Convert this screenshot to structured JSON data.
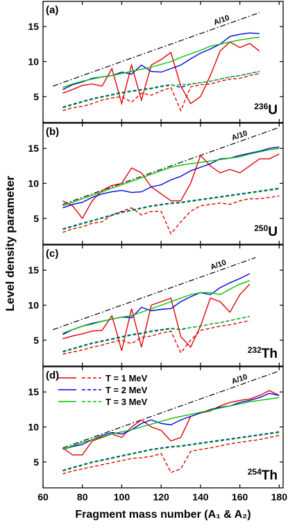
{
  "chart_data": [
    {
      "type": "line",
      "panel_label": "(a)",
      "isotope": {
        "mass": "236",
        "element": "U"
      },
      "ylabel": "Level density parameter",
      "xlim": [
        60,
        182
      ],
      "ylim": [
        1.3,
        18.6
      ],
      "xticks": [
        60,
        80,
        100,
        120,
        140,
        160,
        180
      ],
      "yticks": [
        5,
        10,
        15
      ],
      "reference": {
        "label": "A/10",
        "x": [
          65,
          170
        ],
        "values": [
          6.5,
          17
        ]
      },
      "x": [
        70,
        75,
        80,
        85,
        90,
        95,
        100,
        105,
        110,
        115,
        120,
        125,
        130,
        135,
        140,
        145,
        150,
        155,
        160,
        165,
        170
      ],
      "series": [
        {
          "color": "#e00000",
          "dash": false,
          "values": [
            5.5,
            6.0,
            6.6,
            6.8,
            6.5,
            9.0,
            4.0,
            9.5,
            4.5,
            9.5,
            10.3,
            11.3,
            6.5,
            4.0,
            5.0,
            8.0,
            11.5,
            12.8,
            12.0,
            12.6,
            11.5
          ]
        },
        {
          "color": "#0000e0",
          "dash": false,
          "values": [
            6.0,
            6.7,
            7.1,
            7.6,
            7.8,
            8.0,
            8.5,
            8.2,
            9.5,
            8.6,
            8.5,
            9.0,
            9.5,
            10.4,
            11.2,
            11.8,
            12.5,
            13.6,
            13.9,
            14.1,
            14.0
          ]
        },
        {
          "color": "#00c000",
          "dash": false,
          "values": [
            6.3,
            6.8,
            7.2,
            7.5,
            7.8,
            8.0,
            8.3,
            8.6,
            8.9,
            9.2,
            9.6,
            10.0,
            10.6,
            11.1,
            11.6,
            12.2,
            12.5,
            12.8,
            13.1,
            13.3,
            13.5
          ]
        },
        {
          "color": "#e00000",
          "dash": true,
          "values": [
            3.0,
            3.4,
            3.6,
            4.0,
            4.5,
            4.8,
            5.0,
            4.2,
            5.5,
            5.2,
            5.8,
            6.3,
            3.0,
            6.4,
            6.7,
            6.8,
            7.2,
            7.5,
            7.6,
            8.0,
            8.3
          ]
        },
        {
          "color": "#0000e0",
          "dash": true,
          "values": [
            3.5,
            3.9,
            4.3,
            4.7,
            5.0,
            5.3,
            5.6,
            5.8,
            6.0,
            6.2,
            6.5,
            6.7,
            6.3,
            6.8,
            7.0,
            7.2,
            7.5,
            7.8,
            8.0,
            8.3,
            8.6
          ]
        },
        {
          "color": "#00c000",
          "dash": true,
          "values": [
            3.4,
            3.8,
            4.2,
            4.6,
            4.9,
            5.2,
            5.5,
            5.7,
            5.9,
            6.1,
            6.4,
            6.6,
            6.7,
            6.8,
            7.0,
            7.2,
            7.5,
            7.8,
            8.0,
            8.3,
            8.6
          ]
        }
      ]
    },
    {
      "type": "line",
      "panel_label": "(b)",
      "isotope": {
        "mass": "250",
        "element": "U"
      },
      "xlim": [
        60,
        182
      ],
      "ylim": [
        1.3,
        18.6
      ],
      "xticks": [
        60,
        80,
        100,
        120,
        140,
        160,
        180
      ],
      "yticks": [
        5,
        10,
        15
      ],
      "reference": {
        "label": "A/10",
        "x": [
          70,
          180
        ],
        "values": [
          7.0,
          18.0
        ]
      },
      "x": [
        70,
        75,
        80,
        85,
        90,
        95,
        100,
        105,
        110,
        115,
        120,
        125,
        130,
        135,
        140,
        145,
        150,
        155,
        160,
        165,
        170,
        175,
        180
      ],
      "series": [
        {
          "color": "#e00000",
          "dash": false,
          "values": [
            7.5,
            6.8,
            5.0,
            7.5,
            9.0,
            9.7,
            10.0,
            12.2,
            11.5,
            9.5,
            8.5,
            7.5,
            7.5,
            10.0,
            14.0,
            12.5,
            11.5,
            12.0,
            11.5,
            12.5,
            13.5,
            13.5,
            14.2
          ]
        },
        {
          "color": "#0000e0",
          "dash": false,
          "values": [
            6.5,
            7.0,
            7.3,
            8.0,
            8.5,
            8.8,
            9.0,
            8.7,
            8.8,
            9.5,
            9.8,
            10.5,
            11.0,
            11.8,
            12.3,
            12.8,
            13.5,
            13.6,
            14.0,
            14.3,
            14.6,
            15.0,
            15.2
          ]
        },
        {
          "color": "#00c000",
          "dash": false,
          "values": [
            6.8,
            7.3,
            7.8,
            8.3,
            8.8,
            9.3,
            9.8,
            10.3,
            10.8,
            11.3,
            11.8,
            12.3,
            12.6,
            12.8,
            13.0,
            13.2,
            13.4,
            13.6,
            13.8,
            14.2,
            14.5,
            14.8,
            15.0
          ]
        },
        {
          "color": "#e00000",
          "dash": true,
          "values": [
            3.0,
            3.5,
            3.8,
            4.3,
            4.5,
            5.5,
            6.0,
            6.5,
            5.5,
            6.0,
            6.0,
            2.8,
            4.5,
            6.0,
            6.8,
            7.0,
            7.2,
            7.0,
            7.5,
            7.8,
            7.8,
            8.0,
            8.2
          ]
        },
        {
          "color": "#0000e0",
          "dash": true,
          "values": [
            3.5,
            3.9,
            4.3,
            4.7,
            5.1,
            5.5,
            5.9,
            6.2,
            6.5,
            6.8,
            7.0,
            7.2,
            7.3,
            7.5,
            7.7,
            7.9,
            8.1,
            8.3,
            8.5,
            8.7,
            8.9,
            9.1,
            9.3
          ]
        },
        {
          "color": "#00c000",
          "dash": true,
          "values": [
            3.4,
            3.8,
            4.2,
            4.6,
            5.0,
            5.4,
            5.8,
            6.1,
            6.4,
            6.7,
            6.9,
            7.1,
            7.2,
            7.4,
            7.6,
            7.8,
            8.0,
            8.2,
            8.4,
            8.6,
            8.8,
            9.0,
            9.2
          ]
        }
      ]
    },
    {
      "type": "line",
      "panel_label": "(c)",
      "isotope": {
        "mass": "232",
        "element": "Th"
      },
      "xlim": [
        60,
        182
      ],
      "ylim": [
        1.3,
        18.6
      ],
      "xticks": [
        60,
        80,
        100,
        120,
        140,
        160,
        180
      ],
      "yticks": [
        5,
        10,
        15
      ],
      "reference": {
        "label": "A/10",
        "x": [
          65,
          168
        ],
        "values": [
          6.5,
          16.8
        ]
      },
      "x": [
        70,
        75,
        80,
        85,
        90,
        95,
        100,
        105,
        110,
        115,
        120,
        125,
        130,
        135,
        140,
        145,
        150,
        155,
        160,
        165
      ],
      "series": [
        {
          "color": "#e00000",
          "dash": false,
          "values": [
            5.2,
            5.6,
            5.9,
            6.3,
            6.4,
            8.5,
            3.5,
            9.5,
            4.0,
            10.0,
            10.5,
            11.0,
            5.5,
            4.0,
            7.0,
            11.0,
            10.5,
            9.0,
            11.5,
            13.0
          ]
        },
        {
          "color": "#0000e0",
          "dash": false,
          "values": [
            5.8,
            6.5,
            7.0,
            7.4,
            7.7,
            8.0,
            8.3,
            8.2,
            9.7,
            9.2,
            9.4,
            9.5,
            10.5,
            11.2,
            11.8,
            11.5,
            12.5,
            13.2,
            13.8,
            14.5
          ]
        },
        {
          "color": "#00c000",
          "dash": false,
          "values": [
            6.0,
            6.5,
            7.0,
            7.3,
            7.7,
            8.0,
            8.3,
            8.5,
            9.0,
            9.5,
            10.0,
            10.5,
            11.0,
            11.5,
            11.8,
            11.8,
            11.5,
            12.3,
            13.0,
            13.5
          ]
        },
        {
          "color": "#e00000",
          "dash": true,
          "values": [
            3.0,
            3.3,
            3.6,
            4.0,
            4.3,
            4.7,
            5.0,
            4.5,
            5.4,
            5.6,
            6.0,
            6.3,
            3.2,
            5.0,
            6.4,
            6.7,
            7.0,
            7.2,
            7.5,
            7.8
          ]
        },
        {
          "color": "#0000e0",
          "dash": true,
          "values": [
            3.4,
            3.8,
            4.2,
            4.6,
            4.9,
            5.2,
            5.5,
            5.8,
            6.0,
            6.3,
            6.5,
            6.7,
            6.5,
            6.8,
            7.0,
            7.3,
            7.5,
            7.8,
            8.1,
            8.4
          ]
        },
        {
          "color": "#00c000",
          "dash": true,
          "values": [
            3.3,
            3.7,
            4.1,
            4.5,
            4.8,
            5.1,
            5.4,
            5.7,
            5.9,
            6.2,
            6.4,
            6.6,
            6.6,
            6.8,
            7.0,
            7.3,
            7.5,
            7.8,
            8.1,
            8.4
          ]
        }
      ]
    },
    {
      "type": "line",
      "panel_label": "(d)",
      "isotope": {
        "mass": "254",
        "element": "Th"
      },
      "xlabel": "Fragment mass number  (A₁ & A₂)",
      "legend": [
        "T = 1 MeV",
        "T = 2 MeV",
        "T = 3 MeV"
      ],
      "xlim": [
        60,
        182
      ],
      "ylim": [
        1.3,
        18.6
      ],
      "xticks": [
        60,
        80,
        100,
        120,
        140,
        160,
        180
      ],
      "yticks": [
        5,
        10,
        15
      ],
      "reference": {
        "label": "A/10",
        "x": [
          70,
          180
        ],
        "values": [
          7.0,
          18.0
        ]
      },
      "x": [
        70,
        75,
        80,
        85,
        90,
        95,
        100,
        105,
        110,
        115,
        120,
        125,
        130,
        135,
        140,
        145,
        150,
        155,
        160,
        165,
        170,
        175,
        180
      ],
      "series": [
        {
          "color": "#e00000",
          "dash": false,
          "values": [
            7.0,
            6.0,
            6.0,
            8.0,
            8.5,
            9.0,
            8.5,
            10.0,
            11.0,
            10.0,
            9.5,
            8.0,
            8.5,
            11.5,
            12.0,
            12.3,
            13.0,
            13.5,
            13.8,
            14.0,
            14.5,
            15.2,
            14.5
          ]
        },
        {
          "color": "#0000e0",
          "dash": false,
          "values": [
            6.8,
            7.2,
            7.5,
            8.2,
            8.8,
            9.2,
            9.0,
            9.6,
            10.5,
            11.0,
            10.5,
            10.3,
            11.0,
            11.5,
            12.0,
            12.5,
            12.8,
            13.0,
            13.5,
            13.8,
            14.2,
            14.8,
            14.5
          ]
        },
        {
          "color": "#00c000",
          "dash": false,
          "values": [
            6.8,
            7.3,
            7.8,
            8.2,
            8.6,
            9.0,
            9.3,
            9.6,
            10.0,
            10.4,
            10.8,
            11.2,
            11.5,
            11.8,
            12.1,
            12.4,
            12.7,
            13.0,
            13.3,
            13.6,
            13.8,
            14.0,
            14.2
          ]
        },
        {
          "color": "#e00000",
          "dash": true,
          "values": [
            3.3,
            3.7,
            4.0,
            4.3,
            4.6,
            4.9,
            5.2,
            5.5,
            5.6,
            5.8,
            6.2,
            3.5,
            4.0,
            6.5,
            6.8,
            7.0,
            7.3,
            7.6,
            7.8,
            8.0,
            8.2,
            8.5,
            8.8
          ]
        },
        {
          "color": "#0000e0",
          "dash": true,
          "values": [
            3.8,
            4.2,
            4.6,
            5.0,
            5.3,
            5.6,
            5.9,
            6.2,
            6.5,
            6.8,
            7.0,
            7.2,
            7.3,
            7.5,
            7.7,
            7.9,
            8.1,
            8.3,
            8.5,
            8.7,
            8.9,
            9.1,
            9.3
          ]
        },
        {
          "color": "#00c000",
          "dash": true,
          "values": [
            3.7,
            4.1,
            4.5,
            4.9,
            5.2,
            5.5,
            5.8,
            6.1,
            6.4,
            6.7,
            6.9,
            7.1,
            7.2,
            7.4,
            7.6,
            7.8,
            8.0,
            8.2,
            8.4,
            8.6,
            8.8,
            9.0,
            9.2
          ]
        }
      ]
    }
  ]
}
